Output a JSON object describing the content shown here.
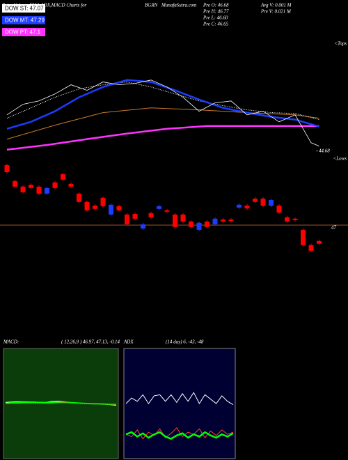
{
  "header": {
    "title": "Price,Volume,EMA,ADX,MACD Charts for",
    "symbol": "BGRN",
    "site": "MunafaSutra.com",
    "stats": [
      "Pre  O: 46.68",
      "Pre  H: 46.77",
      "Pre  L: 46.60",
      "Pre  C: 46.65"
    ],
    "volume": [
      "Avg V: 0.001 M",
      "Pre  V: 0.021 M"
    ],
    "legend": [
      {
        "label": "DOW ST: 47.07",
        "color": "#ffffff"
      },
      {
        "label": "DOW MT: 47.29",
        "color": "#1e3cff"
      },
      {
        "label": "DOW PT: 47.1",
        "color": "#ff33ff"
      }
    ],
    "tops": "<Tops",
    "lows": "<Lows"
  },
  "chart_data": [
    {
      "type": "candlestick",
      "up_color": "#1e3cff",
      "down_color": "#ff0000",
      "xlim": [
        0,
        39
      ],
      "ylim": [
        43.575,
        49.45
      ],
      "yticks": [
        47
      ],
      "grid": true,
      "grid_color": "#a0522d",
      "open": [
        49.15,
        48.58,
        48.38,
        48.45,
        48.38,
        48.13,
        48.53,
        48.83,
        48.48,
        48.13,
        47.83,
        47.7,
        47.98,
        47.38,
        47.68,
        47.38,
        47.4,
        46.88,
        47.43,
        47.58,
        47.53,
        47.38,
        47.38,
        47.13,
        46.83,
        47.13,
        47.03,
        47.2,
        47.2,
        47.63,
        47.7,
        47.95,
        47.95,
        47.7,
        47.7,
        47.28,
        47.23,
        46.83,
        46.28,
        46.43
      ],
      "high": [
        49.2,
        48.63,
        48.43,
        48.5,
        48.43,
        48.38,
        48.58,
        48.88,
        48.53,
        48.18,
        47.88,
        47.75,
        48.03,
        47.78,
        47.73,
        47.43,
        47.45,
        47.08,
        47.48,
        47.73,
        47.58,
        47.43,
        47.43,
        47.18,
        47.13,
        47.18,
        47.28,
        47.25,
        47.25,
        47.78,
        47.75,
        48.0,
        48.0,
        47.95,
        47.75,
        47.33,
        47.28,
        46.88,
        46.33,
        46.48
      ],
      "low": [
        48.85,
        48.33,
        48.13,
        48.28,
        48.08,
        48.08,
        48.28,
        48.58,
        48.33,
        47.78,
        47.48,
        47.53,
        47.63,
        47.33,
        47.48,
        46.98,
        47.18,
        46.83,
        47.23,
        47.53,
        47.43,
        46.88,
        47.08,
        46.88,
        46.78,
        46.88,
        46.98,
        47.08,
        47.1,
        47.58,
        47.55,
        47.78,
        47.65,
        47.65,
        47.4,
        47.08,
        47.13,
        46.23,
        46.03,
        46.28
      ],
      "close": [
        48.9,
        48.38,
        48.18,
        48.33,
        48.13,
        48.33,
        48.33,
        48.63,
        48.38,
        47.83,
        47.53,
        47.58,
        47.68,
        47.73,
        47.53,
        47.03,
        47.23,
        47.03,
        47.28,
        47.68,
        47.48,
        46.93,
        47.13,
        46.93,
        47.08,
        46.93,
        47.23,
        47.13,
        47.15,
        47.73,
        47.6,
        47.83,
        47.7,
        47.9,
        47.45,
        47.13,
        47.18,
        46.28,
        46.08,
        46.33
      ]
    },
    {
      "type": "line",
      "xlim": [
        0,
        39
      ],
      "ylim": [
        44.35,
        48.6
      ],
      "yticks": [
        44.68
      ],
      "series": [
        {
          "color": "#ff33ff",
          "width": 2.5,
          "x": [
            0,
            5,
            10,
            15,
            20,
            25,
            30,
            35,
            39
          ],
          "values": [
            44.73,
            44.9,
            45.11,
            45.31,
            45.48,
            45.58,
            45.58,
            45.58,
            45.58
          ]
        },
        {
          "color": "#c8782a",
          "width": 1,
          "x": [
            0,
            6,
            12,
            18,
            24,
            30,
            36,
            39
          ],
          "values": [
            45.11,
            45.61,
            46.06,
            46.23,
            46.16,
            46.06,
            45.98,
            45.86
          ]
        },
        {
          "color": "#ffffff",
          "width": 1,
          "dash": "1,1.5",
          "x": [
            0,
            3,
            6,
            9,
            12,
            15,
            18,
            21,
            24,
            27,
            30,
            33,
            36,
            39
          ],
          "values": [
            45.86,
            46.23,
            46.61,
            46.91,
            47.06,
            47.16,
            46.98,
            46.73,
            46.48,
            46.31,
            46.16,
            46.06,
            46.03,
            45.81
          ]
        },
        {
          "color": "#1e3cff",
          "width": 2.5,
          "x": [
            0,
            3,
            6,
            9,
            12,
            15,
            18,
            21,
            24,
            27,
            30,
            33,
            36,
            39
          ],
          "values": [
            45.48,
            45.73,
            46.11,
            46.61,
            46.98,
            47.23,
            47.16,
            46.86,
            46.53,
            46.23,
            46.06,
            45.91,
            45.81,
            45.56
          ]
        },
        {
          "color": "#ffffff",
          "width": 0.8,
          "x": [
            0,
            2,
            4,
            6,
            8,
            10,
            12,
            14,
            16,
            18,
            20,
            22,
            24,
            26,
            28,
            30,
            32,
            34,
            36,
            37,
            38,
            39
          ],
          "values": [
            45.98,
            46.36,
            46.48,
            46.73,
            47.06,
            46.86,
            47.16,
            47.06,
            47.11,
            47.23,
            46.98,
            46.61,
            46.11,
            46.41,
            46.48,
            45.98,
            46.11,
            45.73,
            45.98,
            45.48,
            44.98,
            44.86
          ]
        }
      ]
    },
    {
      "type": "line",
      "name": "MACD:",
      "params": "( 12,26,9 ) 46.97, 47.13, -0.14",
      "background": "#0b3d0b",
      "xlim": [
        0,
        19
      ],
      "ylim": [
        38,
        56
      ],
      "series": [
        {
          "color": "#ffffff",
          "width": 1,
          "values": [
            47.2,
            47.25,
            47.3,
            47.3,
            47.28,
            47.25,
            47.2,
            47.22,
            47.35,
            47.4,
            47.3,
            47.2,
            47.1,
            47.05,
            47.0,
            47.0,
            46.95,
            46.9,
            46.8,
            46.7
          ]
        },
        {
          "color": "#00ff00",
          "width": 2,
          "values": [
            47.05,
            47.1,
            47.15,
            47.2,
            47.2,
            47.2,
            47.18,
            47.15,
            47.18,
            47.22,
            47.2,
            47.15,
            47.1,
            47.05,
            47.0,
            46.98,
            46.95,
            46.92,
            46.88,
            46.85
          ]
        },
        {
          "color": "#ff3030",
          "width": 1,
          "dash": "2,1",
          "values": [
            46.95,
            46.98,
            47.0,
            47.02,
            47.03,
            47.03,
            47.02,
            47.02,
            47.05,
            47.08,
            47.1,
            47.08,
            47.05,
            47.02,
            47.0,
            46.98,
            46.96,
            46.94,
            46.92,
            46.9
          ]
        }
      ]
    },
    {
      "type": "line",
      "name": "ADX",
      "params": "(14 day) 6, -43, -48",
      "background": "#000033",
      "xlim": [
        0,
        19
      ],
      "ylim": [
        0,
        100
      ],
      "series": [
        {
          "color": "#ffffff",
          "width": 1,
          "values": [
            50,
            55,
            52,
            58,
            50,
            57,
            58,
            52,
            58,
            51,
            59,
            52,
            60,
            50,
            58,
            54,
            50,
            57,
            52,
            49
          ]
        },
        {
          "color": "#ff4020",
          "width": 1,
          "values": [
            22,
            20,
            26,
            18,
            24,
            21,
            27,
            19,
            23,
            28,
            20,
            24,
            22,
            27,
            19,
            25,
            21,
            26,
            22,
            24
          ]
        },
        {
          "color": "#00ff00",
          "width": 2.5,
          "values": [
            22,
            24,
            20,
            23,
            19,
            22,
            24,
            20,
            18,
            21,
            23,
            19,
            22,
            20,
            24,
            21,
            19,
            22,
            20,
            23
          ]
        }
      ]
    }
  ]
}
